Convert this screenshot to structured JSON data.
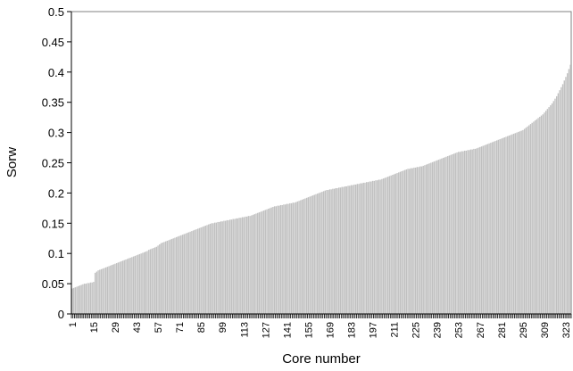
{
  "chart_data": {
    "type": "bar",
    "x_label": "Core number",
    "y_label": "Sorw",
    "color": "#c0c0c0",
    "grid": false,
    "ylim": [
      0,
      0.5
    ],
    "yticks": [
      0,
      0.05,
      0.1,
      0.15,
      0.2,
      0.25,
      0.3,
      0.35,
      0.4,
      0.45,
      0.5
    ],
    "categories": [
      "1",
      null,
      null,
      null,
      null,
      null,
      null,
      null,
      null,
      null,
      null,
      null,
      null,
      null,
      "15",
      null,
      null,
      null,
      null,
      null,
      null,
      null,
      null,
      null,
      null,
      null,
      null,
      null,
      "29",
      null,
      null,
      null,
      null,
      null,
      null,
      null,
      null,
      null,
      null,
      null,
      null,
      null,
      "43",
      null,
      null,
      null,
      null,
      null,
      null,
      null,
      null,
      null,
      null,
      null,
      null,
      null,
      "57",
      null,
      null,
      null,
      null,
      null,
      null,
      null,
      null,
      null,
      null,
      null,
      null,
      null,
      "71",
      null,
      null,
      null,
      null,
      null,
      null,
      null,
      null,
      null,
      null,
      null,
      null,
      null,
      "85",
      null,
      null,
      null,
      null,
      null,
      null,
      null,
      null,
      null,
      null,
      null,
      null,
      null,
      "99",
      null,
      null,
      null,
      null,
      null,
      null,
      null,
      null,
      null,
      null,
      null,
      null,
      null,
      "113",
      null,
      null,
      null,
      null,
      null,
      null,
      null,
      null,
      null,
      null,
      null,
      null,
      null,
      "127",
      null,
      null,
      null,
      null,
      null,
      null,
      null,
      null,
      null,
      null,
      null,
      null,
      null,
      "141",
      null,
      null,
      null,
      null,
      null,
      null,
      null,
      null,
      null,
      null,
      null,
      null,
      null,
      "155",
      null,
      null,
      null,
      null,
      null,
      null,
      null,
      null,
      null,
      null,
      null,
      null,
      null,
      "169",
      null,
      null,
      null,
      null,
      null,
      null,
      null,
      null,
      null,
      null,
      null,
      null,
      null,
      "183",
      null,
      null,
      null,
      null,
      null,
      null,
      null,
      null,
      null,
      null,
      null,
      null,
      null,
      "197",
      null,
      null,
      null,
      null,
      null,
      null,
      null,
      null,
      null,
      null,
      null,
      null,
      null,
      "211",
      null,
      null,
      null,
      null,
      null,
      null,
      null,
      null,
      null,
      null,
      null,
      null,
      null,
      "225",
      null,
      null,
      null,
      null,
      null,
      null,
      null,
      null,
      null,
      null,
      null,
      null,
      null,
      "239",
      null,
      null,
      null,
      null,
      null,
      null,
      null,
      null,
      null,
      null,
      null,
      null,
      null,
      "253",
      null,
      null,
      null,
      null,
      null,
      null,
      null,
      null,
      null,
      null,
      null,
      null,
      null,
      "267",
      null,
      null,
      null,
      null,
      null,
      null,
      null,
      null,
      null,
      null,
      null,
      null,
      null,
      "281",
      null,
      null,
      null,
      null,
      null,
      null,
      null,
      null,
      null,
      null,
      null,
      null,
      null,
      "295",
      null,
      null,
      null,
      null,
      null,
      null,
      null,
      null,
      null,
      null,
      null,
      null,
      null,
      "309",
      null,
      null,
      null,
      null,
      null,
      null,
      null,
      null,
      null,
      null,
      null,
      null,
      null,
      "323",
      null,
      null,
      null
    ],
    "values": [
      0.042,
      0.043,
      0.044,
      0.045,
      0.046,
      0.047,
      0.048,
      0.049,
      0.05,
      0.05,
      0.051,
      0.051,
      0.052,
      0.052,
      0.053,
      0.068,
      0.07,
      0.072,
      0.073,
      0.074,
      0.075,
      0.076,
      0.077,
      0.078,
      0.079,
      0.08,
      0.081,
      0.082,
      0.083,
      0.084,
      0.085,
      0.086,
      0.087,
      0.088,
      0.089,
      0.09,
      0.091,
      0.092,
      0.093,
      0.094,
      0.095,
      0.096,
      0.097,
      0.098,
      0.099,
      0.1,
      0.101,
      0.102,
      0.103,
      0.104,
      0.106,
      0.107,
      0.108,
      0.109,
      0.11,
      0.111,
      0.113,
      0.115,
      0.117,
      0.118,
      0.119,
      0.12,
      0.121,
      0.122,
      0.123,
      0.124,
      0.125,
      0.126,
      0.127,
      0.128,
      0.129,
      0.13,
      0.131,
      0.132,
      0.133,
      0.134,
      0.135,
      0.136,
      0.137,
      0.138,
      0.139,
      0.14,
      0.141,
      0.142,
      0.143,
      0.144,
      0.145,
      0.146,
      0.147,
      0.148,
      0.149,
      0.15,
      0.15,
      0.151,
      0.151,
      0.152,
      0.152,
      0.153,
      0.153,
      0.154,
      0.154,
      0.155,
      0.155,
      0.156,
      0.156,
      0.157,
      0.157,
      0.158,
      0.158,
      0.159,
      0.159,
      0.16,
      0.16,
      0.161,
      0.161,
      0.162,
      0.162,
      0.163,
      0.164,
      0.165,
      0.166,
      0.167,
      0.168,
      0.169,
      0.17,
      0.171,
      0.172,
      0.173,
      0.174,
      0.175,
      0.176,
      0.177,
      0.178,
      0.178,
      0.179,
      0.179,
      0.18,
      0.18,
      0.181,
      0.181,
      0.182,
      0.182,
      0.183,
      0.183,
      0.184,
      0.184,
      0.185,
      0.186,
      0.187,
      0.188,
      0.189,
      0.19,
      0.191,
      0.192,
      0.193,
      0.194,
      0.195,
      0.196,
      0.197,
      0.198,
      0.199,
      0.2,
      0.201,
      0.202,
      0.203,
      0.204,
      0.205,
      0.205,
      0.206,
      0.206,
      0.207,
      0.207,
      0.208,
      0.208,
      0.209,
      0.209,
      0.21,
      0.21,
      0.211,
      0.211,
      0.212,
      0.212,
      0.213,
      0.213,
      0.214,
      0.214,
      0.215,
      0.215,
      0.216,
      0.216,
      0.217,
      0.217,
      0.218,
      0.218,
      0.219,
      0.219,
      0.22,
      0.22,
      0.221,
      0.221,
      0.222,
      0.222,
      0.223,
      0.224,
      0.225,
      0.226,
      0.227,
      0.228,
      0.229,
      0.23,
      0.231,
      0.232,
      0.233,
      0.234,
      0.235,
      0.236,
      0.237,
      0.238,
      0.239,
      0.24,
      0.24,
      0.241,
      0.241,
      0.242,
      0.242,
      0.243,
      0.243,
      0.244,
      0.244,
      0.245,
      0.246,
      0.247,
      0.248,
      0.249,
      0.25,
      0.251,
      0.252,
      0.253,
      0.254,
      0.255,
      0.256,
      0.257,
      0.258,
      0.259,
      0.26,
      0.261,
      0.262,
      0.263,
      0.264,
      0.265,
      0.266,
      0.267,
      0.268,
      0.268,
      0.269,
      0.269,
      0.27,
      0.27,
      0.271,
      0.271,
      0.272,
      0.272,
      0.273,
      0.273,
      0.274,
      0.275,
      0.276,
      0.277,
      0.278,
      0.279,
      0.28,
      0.281,
      0.282,
      0.283,
      0.284,
      0.285,
      0.286,
      0.287,
      0.288,
      0.289,
      0.29,
      0.291,
      0.292,
      0.293,
      0.294,
      0.295,
      0.296,
      0.297,
      0.298,
      0.299,
      0.3,
      0.301,
      0.302,
      0.303,
      0.304,
      0.306,
      0.308,
      0.31,
      0.312,
      0.314,
      0.316,
      0.318,
      0.32,
      0.322,
      0.324,
      0.326,
      0.328,
      0.33,
      0.333,
      0.336,
      0.339,
      0.342,
      0.345,
      0.348,
      0.352,
      0.356,
      0.36,
      0.365,
      0.37,
      0.375,
      0.38,
      0.386,
      0.392,
      0.398,
      0.405,
      0.412
    ]
  }
}
